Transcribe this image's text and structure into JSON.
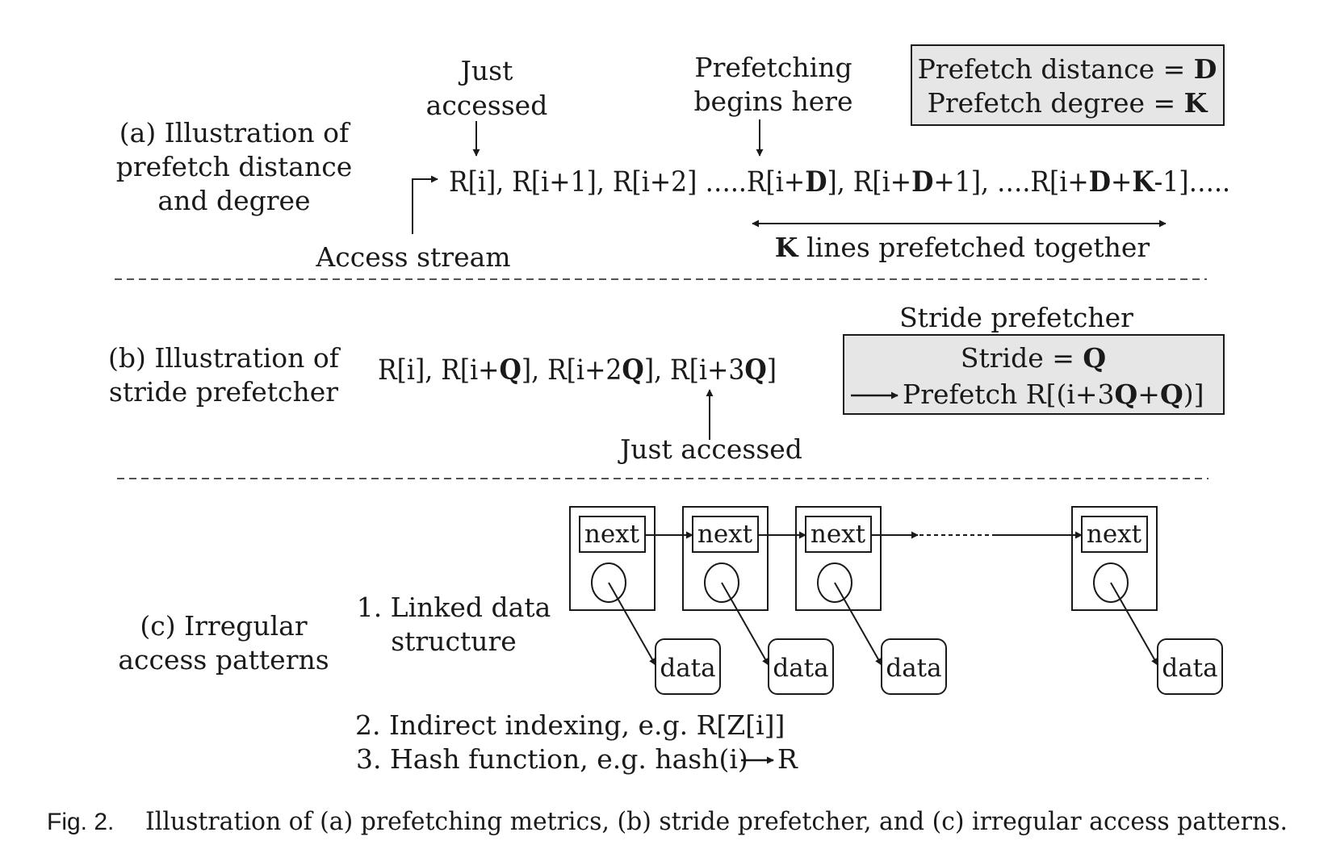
{
  "section_a": {
    "label": [
      "(a) Illustration of",
      "prefetch distance",
      "and degree"
    ],
    "just_accessed": [
      "Just",
      "accessed"
    ],
    "prefetch_begins": [
      "Prefetching",
      "begins here"
    ],
    "sequence": [
      {
        "t": "R[i], R[i+1], R[i+2] …..R[i+",
        "b": false
      },
      {
        "t": "D",
        "b": true
      },
      {
        "t": "], R[i+",
        "b": false
      },
      {
        "t": "D",
        "b": true
      },
      {
        "t": "+1], ….R[i+",
        "b": false
      },
      {
        "t": "D",
        "b": true
      },
      {
        "t": "+",
        "b": false
      },
      {
        "t": "K",
        "b": true
      },
      {
        "t": "-1]…..",
        "b": false
      }
    ],
    "access_stream": "Access stream",
    "k_lines": {
      "bold": "K",
      "rest": " lines prefetched together"
    },
    "box_distance": {
      "text": "Prefetch distance = ",
      "bold": "D"
    },
    "box_degree": {
      "text": "Prefetch degree = ",
      "bold": "K"
    }
  },
  "section_b": {
    "label": [
      "(b) Illustration of",
      "stride prefetcher"
    ],
    "sequence": [
      {
        "t": "R[i], R[i+",
        "b": false
      },
      {
        "t": "Q",
        "b": true
      },
      {
        "t": "], R[i+2",
        "b": false
      },
      {
        "t": "Q",
        "b": true
      },
      {
        "t": "], R[i+3",
        "b": false
      },
      {
        "t": "Q",
        "b": true
      },
      {
        "t": "]",
        "b": false
      }
    ],
    "just_accessed": "Just accessed",
    "box_title": "Stride prefetcher",
    "stride": {
      "text": "Stride = ",
      "bold": "Q"
    },
    "prefetch": [
      {
        "t": "Prefetch R[(i+3",
        "b": false
      },
      {
        "t": "Q",
        "b": true
      },
      {
        "t": "+",
        "b": false
      },
      {
        "t": "Q",
        "b": true
      },
      {
        "t": ")]",
        "b": false
      }
    ]
  },
  "section_c": {
    "label": [
      "(c) Irregular",
      "access patterns"
    ],
    "item1": [
      "1. Linked data",
      "structure"
    ],
    "item2": "2. Indirect indexing, e.g. R[Z[i]]",
    "item3": {
      "text": "3. Hash function, e.g. hash(i)",
      "target": "R"
    },
    "nodes": [
      {
        "next": "next",
        "data": "data"
      },
      {
        "next": "next",
        "data": "data"
      },
      {
        "next": "next",
        "data": "data"
      },
      {
        "next": "next",
        "data": "data"
      }
    ]
  },
  "caption": {
    "fig": "Fig. 2.",
    "text": "Illustration of (a) prefetching metrics, (b) stride prefetcher, and (c) irregular access patterns."
  },
  "colors": {
    "box_fill": "#e6e6e6",
    "ink": "#1a1a1a"
  }
}
